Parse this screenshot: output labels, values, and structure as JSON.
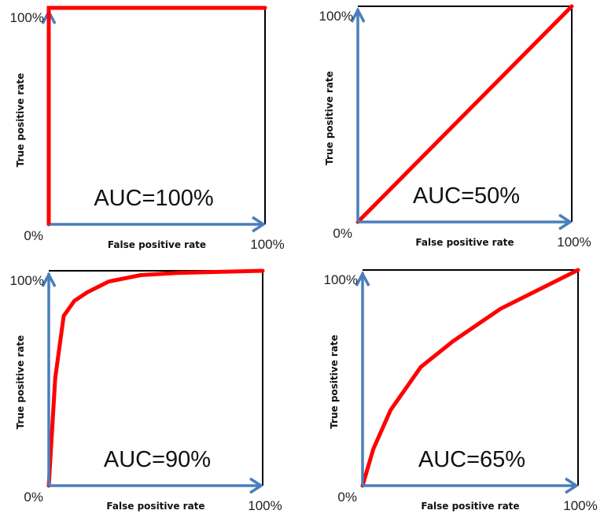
{
  "colors": {
    "curve": "#ff0000",
    "axis": "#4a7ebb",
    "frame": "#000000"
  },
  "chart_data": [
    {
      "type": "line",
      "xlabel": "False positive rate",
      "ylabel": "True positive rate",
      "x_tick_labels": [
        "0%",
        "100%"
      ],
      "y_tick_labels": [
        "100%"
      ],
      "xlim": [
        0,
        100
      ],
      "ylim": [
        0,
        100
      ],
      "annotation": "AUC=100%",
      "x": [
        0,
        0,
        100
      ],
      "y": [
        0,
        100,
        100
      ]
    },
    {
      "type": "line",
      "xlabel": "False positive rate",
      "ylabel": "True positive rate",
      "x_tick_labels": [
        "0%",
        "100%"
      ],
      "y_tick_labels": [
        "100%"
      ],
      "xlim": [
        0,
        100
      ],
      "ylim": [
        0,
        100
      ],
      "annotation": "AUC=50%",
      "x": [
        0,
        100
      ],
      "y": [
        0,
        100
      ]
    },
    {
      "type": "line",
      "xlabel": "False positive rate",
      "ylabel": "True positive rate",
      "x_tick_labels": [
        "0%",
        "100%"
      ],
      "y_tick_labels": [
        "100%"
      ],
      "xlim": [
        0,
        100
      ],
      "ylim": [
        0,
        100
      ],
      "annotation": "AUC=90%",
      "x": [
        0,
        3,
        7,
        12,
        18,
        28,
        43,
        60,
        100
      ],
      "y": [
        0,
        50,
        79,
        86,
        90,
        95,
        98,
        99,
        100
      ]
    },
    {
      "type": "line",
      "xlabel": "False positive rate",
      "ylabel": "True positive rate",
      "x_tick_labels": [
        "0%",
        "100%"
      ],
      "y_tick_labels": [
        "100%"
      ],
      "xlim": [
        0,
        100
      ],
      "ylim": [
        0,
        100
      ],
      "annotation": "AUC=65%",
      "x": [
        0,
        5,
        13,
        27,
        42,
        64,
        100
      ],
      "y": [
        0,
        17,
        35,
        55,
        67,
        82,
        100
      ]
    }
  ]
}
